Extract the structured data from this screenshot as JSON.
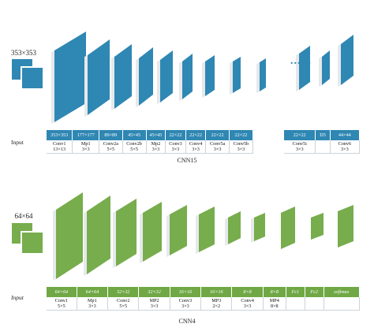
{
  "top": {
    "input_size": "353×353",
    "dots": "......",
    "headers": [
      "353×353",
      "177×177",
      "89×89",
      "45×45",
      "45×45",
      "22×22",
      "22×22",
      "22×22",
      "22×22"
    ],
    "right_headers": [
      "22×22",
      "D5",
      "44×44"
    ],
    "layer_names": [
      "Conv1",
      "Mp1",
      "Conv2a",
      "Conv2b",
      "Mp2",
      "Conv3",
      "Conv4",
      "Conv5a",
      "Conv5b"
    ],
    "layer_kernels": [
      "13×13",
      "3×3",
      "5×5",
      "5×5",
      "3×3",
      "3×3",
      "3×3",
      "3×3",
      "3×3"
    ],
    "right_names": [
      "Conv5i",
      "",
      "Conv6"
    ],
    "right_kernels": [
      "3×3",
      "",
      "3×3"
    ],
    "row_label": "Input",
    "caption": "CNN15",
    "colors": {
      "face": "#2f87b3",
      "side": "#e6e9ec"
    }
  },
  "bottom": {
    "input_size": "64×64",
    "headers": [
      "64×64",
      "64×64",
      "32×32",
      "32×32",
      "16×16",
      "16×16",
      "8×8",
      "8×8",
      "Fc1",
      "Fc2",
      "softmax"
    ],
    "layer_names": [
      "Conv1",
      "Mp1",
      "Conv2",
      "MP2",
      "Conv3",
      "MP3",
      "Conv4",
      "MP4",
      "",
      "",
      ""
    ],
    "layer_kernels": [
      "5×5",
      "3×3",
      "5×5",
      "3×3",
      "3×3",
      "2×2",
      "3×3",
      "8×8",
      "",
      "",
      ""
    ],
    "row_label": "Input",
    "caption": "CNN4",
    "colors": {
      "face": "#77ad4c",
      "side": "#e6e9ec"
    }
  }
}
